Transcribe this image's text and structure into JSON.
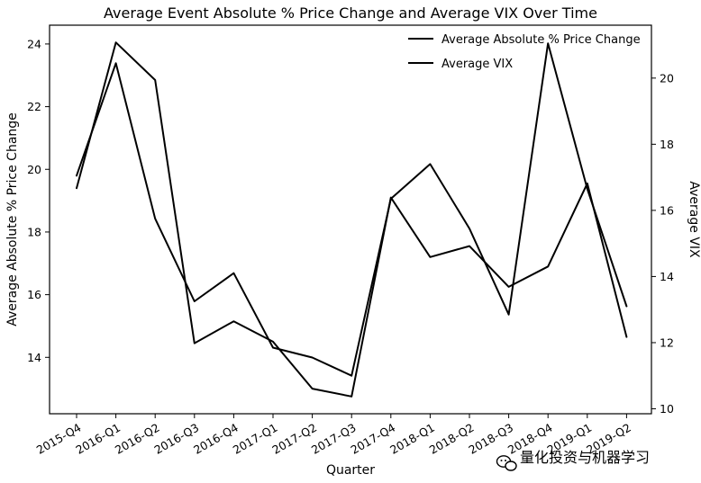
{
  "chart_data": {
    "type": "line",
    "title": "Average Event Absolute % Price Change and Average VIX Over Time",
    "xlabel": "Quarter",
    "ylabel_left": "Average Absolute % Price Change",
    "ylabel_right": "Average VIX",
    "categories": [
      "2015-Q4",
      "2016-Q1",
      "2016-Q2",
      "2016-Q3",
      "2016-Q4",
      "2017-Q1",
      "2017-Q2",
      "2017-Q3",
      "2017-Q4",
      "2018-Q1",
      "2018-Q2",
      "2018-Q3",
      "2018-Q4",
      "2019-Q1",
      "2019-Q2"
    ],
    "series": [
      {
        "name": "Average Absolute % Price Change",
        "axis": "left",
        "values": [
          19.4,
          24.05,
          22.85,
          14.45,
          15.15,
          14.5,
          13.0,
          12.75,
          19.1,
          17.2,
          17.55,
          16.25,
          16.9,
          19.55,
          14.65
        ]
      },
      {
        "name": "Average VIX",
        "axis": "right",
        "values": [
          17.05,
          20.45,
          15.75,
          13.25,
          14.1,
          11.85,
          11.55,
          11.0,
          16.35,
          17.4,
          15.45,
          12.85,
          21.05,
          16.65,
          13.1
        ]
      }
    ],
    "ylim_left": [
      12.2,
      24.6
    ],
    "ylim_right": [
      9.85,
      21.6
    ],
    "yticks_left": [
      14,
      16,
      18,
      20,
      22,
      24
    ],
    "yticks_right": [
      10,
      12,
      14,
      16,
      18,
      20
    ],
    "grid": false,
    "legend": "top-right",
    "line_color": "#000000"
  },
  "watermark": {
    "text": "量化投资与机器学习"
  }
}
